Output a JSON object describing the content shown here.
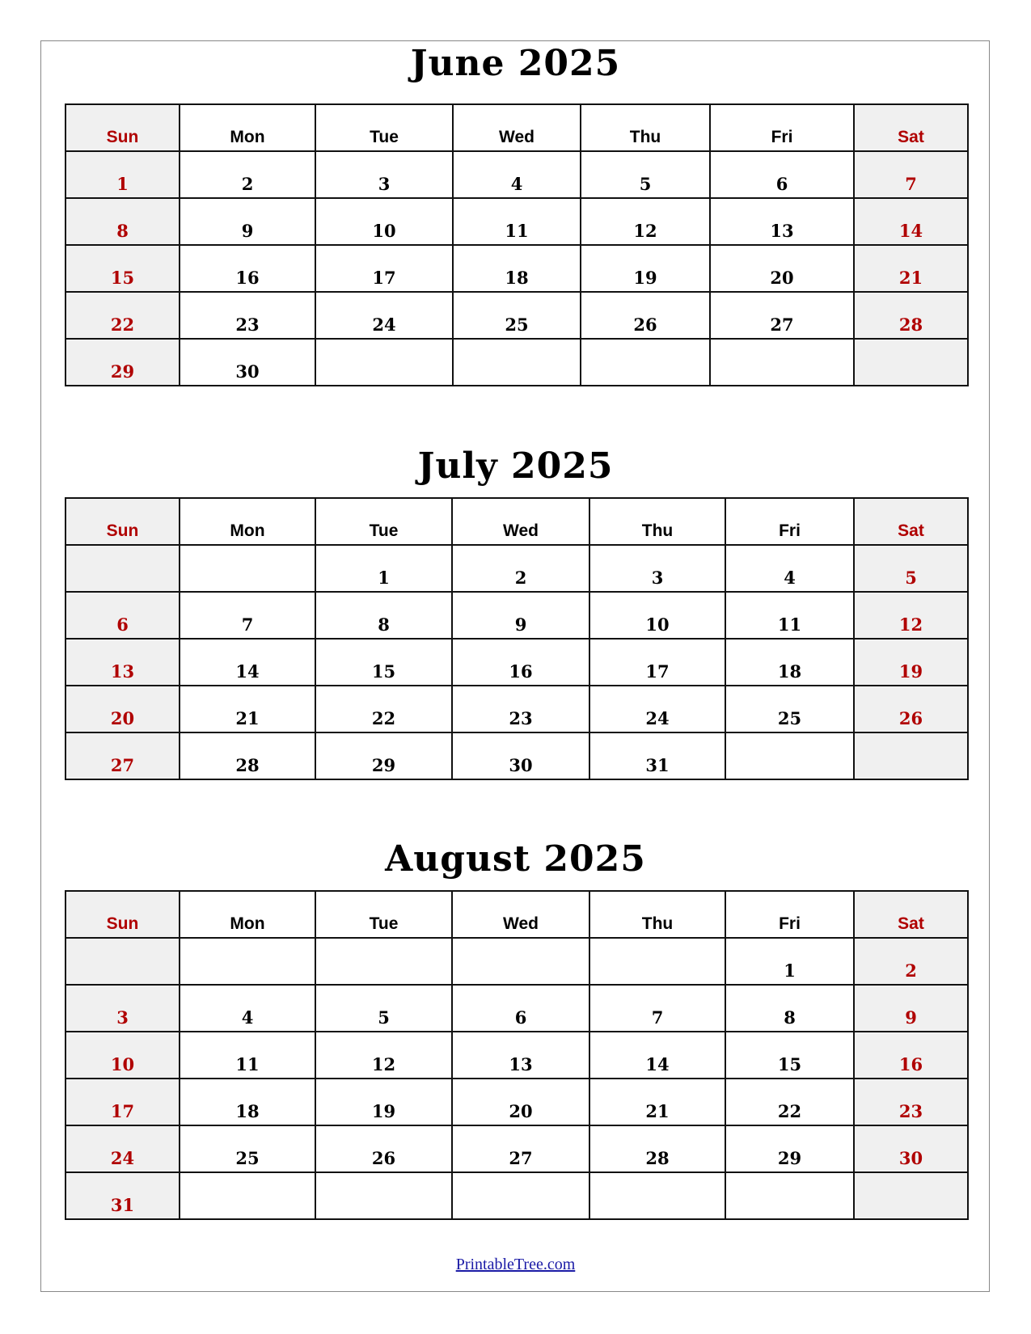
{
  "colors": {
    "weekend_text": "#b00000",
    "weekend_bg": "#f0f0f0",
    "link": "#1a1aa6"
  },
  "weekdays": [
    "Sun",
    "Mon",
    "Tue",
    "Wed",
    "Thu",
    "Fri",
    "Sat"
  ],
  "months": [
    {
      "title": "June 2025",
      "weeks": [
        [
          "1",
          "2",
          "3",
          "4",
          "5",
          "6",
          "7"
        ],
        [
          "8",
          "9",
          "10",
          "11",
          "12",
          "13",
          "14"
        ],
        [
          "15",
          "16",
          "17",
          "18",
          "19",
          "20",
          "21"
        ],
        [
          "22",
          "23",
          "24",
          "25",
          "26",
          "27",
          "28"
        ],
        [
          "29",
          "30",
          "",
          "",
          "",
          "",
          ""
        ]
      ]
    },
    {
      "title": "July 2025",
      "weeks": [
        [
          "",
          "",
          "1",
          "2",
          "3",
          "4",
          "5"
        ],
        [
          "6",
          "7",
          "8",
          "9",
          "10",
          "11",
          "12"
        ],
        [
          "13",
          "14",
          "15",
          "16",
          "17",
          "18",
          "19"
        ],
        [
          "20",
          "21",
          "22",
          "23",
          "24",
          "25",
          "26"
        ],
        [
          "27",
          "28",
          "29",
          "30",
          "31",
          "",
          ""
        ]
      ]
    },
    {
      "title": "August 2025",
      "weeks": [
        [
          "",
          "",
          "",
          "",
          "",
          "1",
          "2"
        ],
        [
          "3",
          "4",
          "5",
          "6",
          "7",
          "8",
          "9"
        ],
        [
          "10",
          "11",
          "12",
          "13",
          "14",
          "15",
          "16"
        ],
        [
          "17",
          "18",
          "19",
          "20",
          "21",
          "22",
          "23"
        ],
        [
          "24",
          "25",
          "26",
          "27",
          "28",
          "29",
          "30"
        ],
        [
          "31",
          "",
          "",
          "",
          "",
          "",
          ""
        ]
      ]
    }
  ],
  "footer": {
    "link_text": "PrintableTree.com"
  }
}
